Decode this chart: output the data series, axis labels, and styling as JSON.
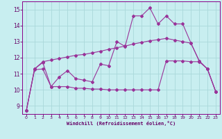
{
  "x": [
    0,
    1,
    2,
    3,
    4,
    5,
    6,
    7,
    8,
    9,
    10,
    11,
    12,
    13,
    14,
    15,
    16,
    17,
    18,
    19,
    20,
    21,
    22,
    23
  ],
  "line_main": [
    8.7,
    11.3,
    11.7,
    10.2,
    10.8,
    11.2,
    10.7,
    10.6,
    10.5,
    11.6,
    11.5,
    13.0,
    12.7,
    14.6,
    14.6,
    15.1,
    14.1,
    14.6,
    14.1,
    14.1,
    12.9,
    11.8,
    11.3,
    9.9
  ],
  "line_upper": [
    8.7,
    11.3,
    11.75,
    11.85,
    11.95,
    12.05,
    12.15,
    12.2,
    12.3,
    12.4,
    12.52,
    12.62,
    12.72,
    12.85,
    12.95,
    13.05,
    13.12,
    13.2,
    13.1,
    13.0,
    12.9,
    11.8,
    11.3,
    9.9
  ],
  "line_lower": [
    8.7,
    11.25,
    11.3,
    10.2,
    10.2,
    10.2,
    10.1,
    10.1,
    10.05,
    10.05,
    10.0,
    10.0,
    10.0,
    10.0,
    10.0,
    10.0,
    10.0,
    11.8,
    11.8,
    11.8,
    11.75,
    11.75,
    11.3,
    9.9
  ],
  "color_main": "#993399",
  "color_upper": "#993399",
  "color_lower": "#993399",
  "bg_color": "#c8eef0",
  "grid_color": "#aad8da",
  "xlabel": "Windchill (Refroidissement éolien,°C)",
  "ytick_labels": [
    "9",
    "10",
    "11",
    "12",
    "13",
    "14",
    "15"
  ],
  "yticks": [
    9,
    10,
    11,
    12,
    13,
    14,
    15
  ],
  "xticks": [
    0,
    1,
    2,
    3,
    4,
    5,
    6,
    7,
    8,
    9,
    10,
    11,
    12,
    13,
    14,
    15,
    16,
    17,
    18,
    19,
    20,
    21,
    22,
    23
  ],
  "ylim": [
    8.5,
    15.5
  ],
  "xlim": [
    -0.5,
    23.5
  ]
}
